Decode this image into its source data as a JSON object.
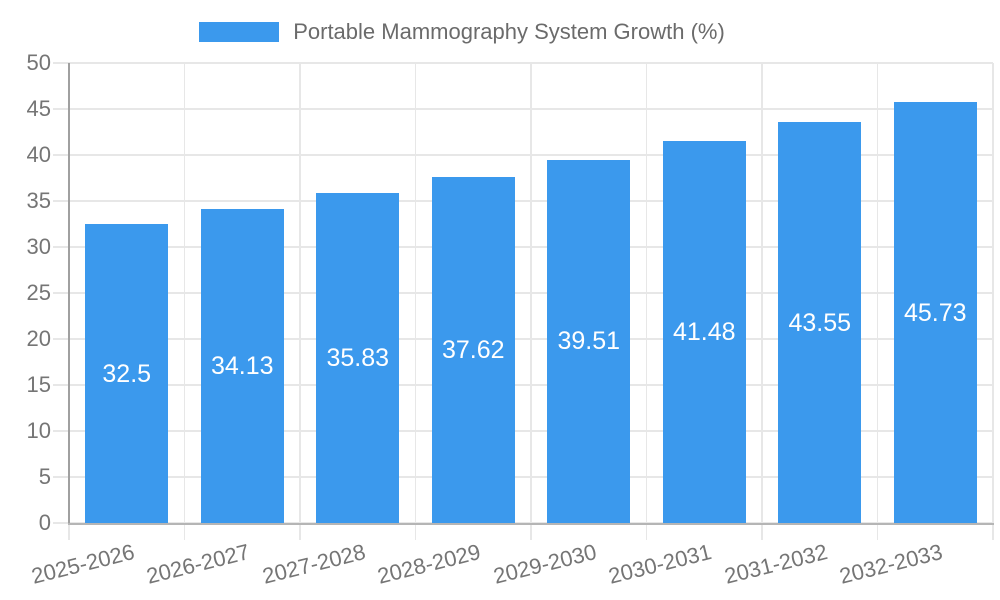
{
  "legend": {
    "label": "Portable Mammography System Growth (%)"
  },
  "chart_data": {
    "type": "bar",
    "title": "",
    "xlabel": "",
    "ylabel": "",
    "categories": [
      "2025-2026",
      "2026-2027",
      "2027-2028",
      "2028-2029",
      "2029-2030",
      "2030-2031",
      "2031-2032",
      "2032-2033"
    ],
    "series": [
      {
        "name": "Portable Mammography System Growth (%)",
        "values": [
          32.5,
          34.13,
          35.83,
          37.62,
          39.51,
          41.48,
          43.55,
          45.73
        ]
      }
    ],
    "value_labels": [
      "32.5",
      "34.13",
      "35.83",
      "37.62",
      "39.51",
      "41.48",
      "43.55",
      "45.73"
    ],
    "ylim": [
      0,
      50
    ],
    "ytick_step": 5,
    "grid": true,
    "legend_position": "top-center",
    "colors": {
      "bar_fill": "#3b99ed",
      "grid_line": "#e7e7e7",
      "x_axis_line": "#b5b5b5",
      "y_axis_line": "#a0a0a0",
      "tick_label": "#757575",
      "value_label": "#ffffff",
      "legend_text": "#6b6b6b"
    }
  }
}
